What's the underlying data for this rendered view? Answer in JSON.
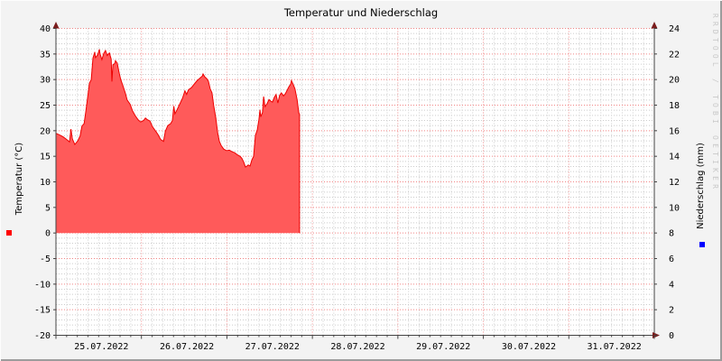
{
  "title": "Temperatur und Niederschlag",
  "watermark": "RRDTOOL / TOBI OETIKER",
  "colors": {
    "canvas_bg": "#f3f3f3",
    "plot_bg": "#ffffff",
    "area_fill": "#ff5a5a",
    "area_line": "#ee0000",
    "major_grid": "#f18585",
    "minor_grid": "#cccccc",
    "axis": "#444444",
    "arrow": "#7a1c1c",
    "text": "#000000",
    "watermark_color": "#c8c8c8",
    "legend_temperature": "#ff0000",
    "legend_precipitation": "#0000ff"
  },
  "chart_data": {
    "type": "area",
    "title": "Temperatur und Niederschlag",
    "x_axis": {
      "days": 7,
      "tick_labels": [
        "25.07.2022",
        "26.07.2022",
        "27.07.2022",
        "28.07.2022",
        "29.07.2022",
        "30.07.2022",
        "31.07.2022"
      ],
      "minor_intervals_per_day": 8
    },
    "left_axis": {
      "label": "Temperatur (°C)",
      "min": -20,
      "max": 40,
      "tick_step": 5,
      "tick_labels": [
        "40",
        "35",
        "30",
        "25",
        "20",
        "15",
        "10",
        "5",
        "0",
        "-5",
        "-10",
        "-15",
        "-20"
      ]
    },
    "right_axis": {
      "label": "Niederschlag (mm)",
      "min": 0,
      "max": 24,
      "tick_step": 2,
      "tick_labels": [
        "24",
        "22",
        "20",
        "18",
        "16",
        "14",
        "12",
        "10",
        "8",
        "6",
        "4",
        "2",
        "0"
      ]
    },
    "series": [
      {
        "name": "Temperatur",
        "unit": "°C",
        "style": "area",
        "axis": "left",
        "fill": "#ff5a5a",
        "line": "#ee0000",
        "data_start_hour": 0,
        "data_end_hour": 68.4,
        "points_hour_value": [
          [
            0,
            19.5
          ],
          [
            1,
            19.2
          ],
          [
            2,
            18.8
          ],
          [
            3,
            18.3
          ],
          [
            3.8,
            17.8
          ],
          [
            4.2,
            20.3
          ],
          [
            4.6,
            18.4
          ],
          [
            5.3,
            17.3
          ],
          [
            6.1,
            18.0
          ],
          [
            6.8,
            19.0
          ],
          [
            7.3,
            20.9
          ],
          [
            7.9,
            21.4
          ],
          [
            8.4,
            23.9
          ],
          [
            8.9,
            26.5
          ],
          [
            9.4,
            29.3
          ],
          [
            9.9,
            30.0
          ],
          [
            10.4,
            34.2
          ],
          [
            10.9,
            35.4
          ],
          [
            11.1,
            34.3
          ],
          [
            11.7,
            34.8
          ],
          [
            12.2,
            35.9
          ],
          [
            12.4,
            35.0
          ],
          [
            12.9,
            33.9
          ],
          [
            13.4,
            35.1
          ],
          [
            13.9,
            35.7
          ],
          [
            14.4,
            34.7
          ],
          [
            15.0,
            35.2
          ],
          [
            15.5,
            34.0
          ],
          [
            15.7,
            29.6
          ],
          [
            16.0,
            32.9
          ],
          [
            16.5,
            33.1
          ],
          [
            16.7,
            33.7
          ],
          [
            17.2,
            33.2
          ],
          [
            17.7,
            31.4
          ],
          [
            18.2,
            30.0
          ],
          [
            18.8,
            28.8
          ],
          [
            19.5,
            27.3
          ],
          [
            20.0,
            26.0
          ],
          [
            20.8,
            25.2
          ],
          [
            21.5,
            23.9
          ],
          [
            22.3,
            22.9
          ],
          [
            23.1,
            22.1
          ],
          [
            23.8,
            21.7
          ],
          [
            24.6,
            22.0
          ],
          [
            25.1,
            22.5
          ],
          [
            25.6,
            22.2
          ],
          [
            26.4,
            21.9
          ],
          [
            27.1,
            20.8
          ],
          [
            27.9,
            20.0
          ],
          [
            28.6,
            19.3
          ],
          [
            29.4,
            18.3
          ],
          [
            30.2,
            17.9
          ],
          [
            30.7,
            19.9
          ],
          [
            31.4,
            21.0
          ],
          [
            32.2,
            21.4
          ],
          [
            32.7,
            22.0
          ],
          [
            33.1,
            24.8
          ],
          [
            33.4,
            23.3
          ],
          [
            34.0,
            24.1
          ],
          [
            34.7,
            25.1
          ],
          [
            35.5,
            26.3
          ],
          [
            36.2,
            27.8
          ],
          [
            36.7,
            27.1
          ],
          [
            37.2,
            28.0
          ],
          [
            38.0,
            28.4
          ],
          [
            38.8,
            29.1
          ],
          [
            39.5,
            29.7
          ],
          [
            40.3,
            30.2
          ],
          [
            41.1,
            30.7
          ],
          [
            41.3,
            31.1
          ],
          [
            41.8,
            30.5
          ],
          [
            42.3,
            30.2
          ],
          [
            42.8,
            29.7
          ],
          [
            43.3,
            28.2
          ],
          [
            43.8,
            27.4
          ],
          [
            44.3,
            24.9
          ],
          [
            44.9,
            22.4
          ],
          [
            45.4,
            19.6
          ],
          [
            45.9,
            17.9
          ],
          [
            46.4,
            17.1
          ],
          [
            47.1,
            16.4
          ],
          [
            47.9,
            16.1
          ],
          [
            48.7,
            16.2
          ],
          [
            49.4,
            15.9
          ],
          [
            50.2,
            15.7
          ],
          [
            50.9,
            15.3
          ],
          [
            51.7,
            15.0
          ],
          [
            52.2,
            14.6
          ],
          [
            52.7,
            13.9
          ],
          [
            53.2,
            12.9
          ],
          [
            54.0,
            13.3
          ],
          [
            54.5,
            13.1
          ],
          [
            55.0,
            14.3
          ],
          [
            55.5,
            15.0
          ],
          [
            56.0,
            19.1
          ],
          [
            56.5,
            20.1
          ],
          [
            57.0,
            22.2
          ],
          [
            57.3,
            24.1
          ],
          [
            57.5,
            22.7
          ],
          [
            58.0,
            23.6
          ],
          [
            58.3,
            26.7
          ],
          [
            58.7,
            24.7
          ],
          [
            59.3,
            25.3
          ],
          [
            59.8,
            26.1
          ],
          [
            60.3,
            25.8
          ],
          [
            60.8,
            25.6
          ],
          [
            61.3,
            26.5
          ],
          [
            61.8,
            27.1
          ],
          [
            62.3,
            25.4
          ],
          [
            62.8,
            26.9
          ],
          [
            63.3,
            27.4
          ],
          [
            63.9,
            26.8
          ],
          [
            64.4,
            27.2
          ],
          [
            64.9,
            27.9
          ],
          [
            65.4,
            28.6
          ],
          [
            65.9,
            29.1
          ],
          [
            66.1,
            29.8
          ],
          [
            66.6,
            29.1
          ],
          [
            67.1,
            28.2
          ],
          [
            67.7,
            26.1
          ],
          [
            68.2,
            23.5
          ],
          [
            68.4,
            23.2
          ]
        ]
      },
      {
        "name": "Niederschlag",
        "unit": "mm",
        "style": "area",
        "axis": "right",
        "fill": "#0000ff",
        "points_hour_value": []
      }
    ],
    "legend_markers": [
      {
        "series": "Temperatur",
        "color": "#ff0000",
        "side": "left"
      },
      {
        "series": "Niederschlag",
        "color": "#0000ff",
        "side": "right"
      }
    ]
  }
}
